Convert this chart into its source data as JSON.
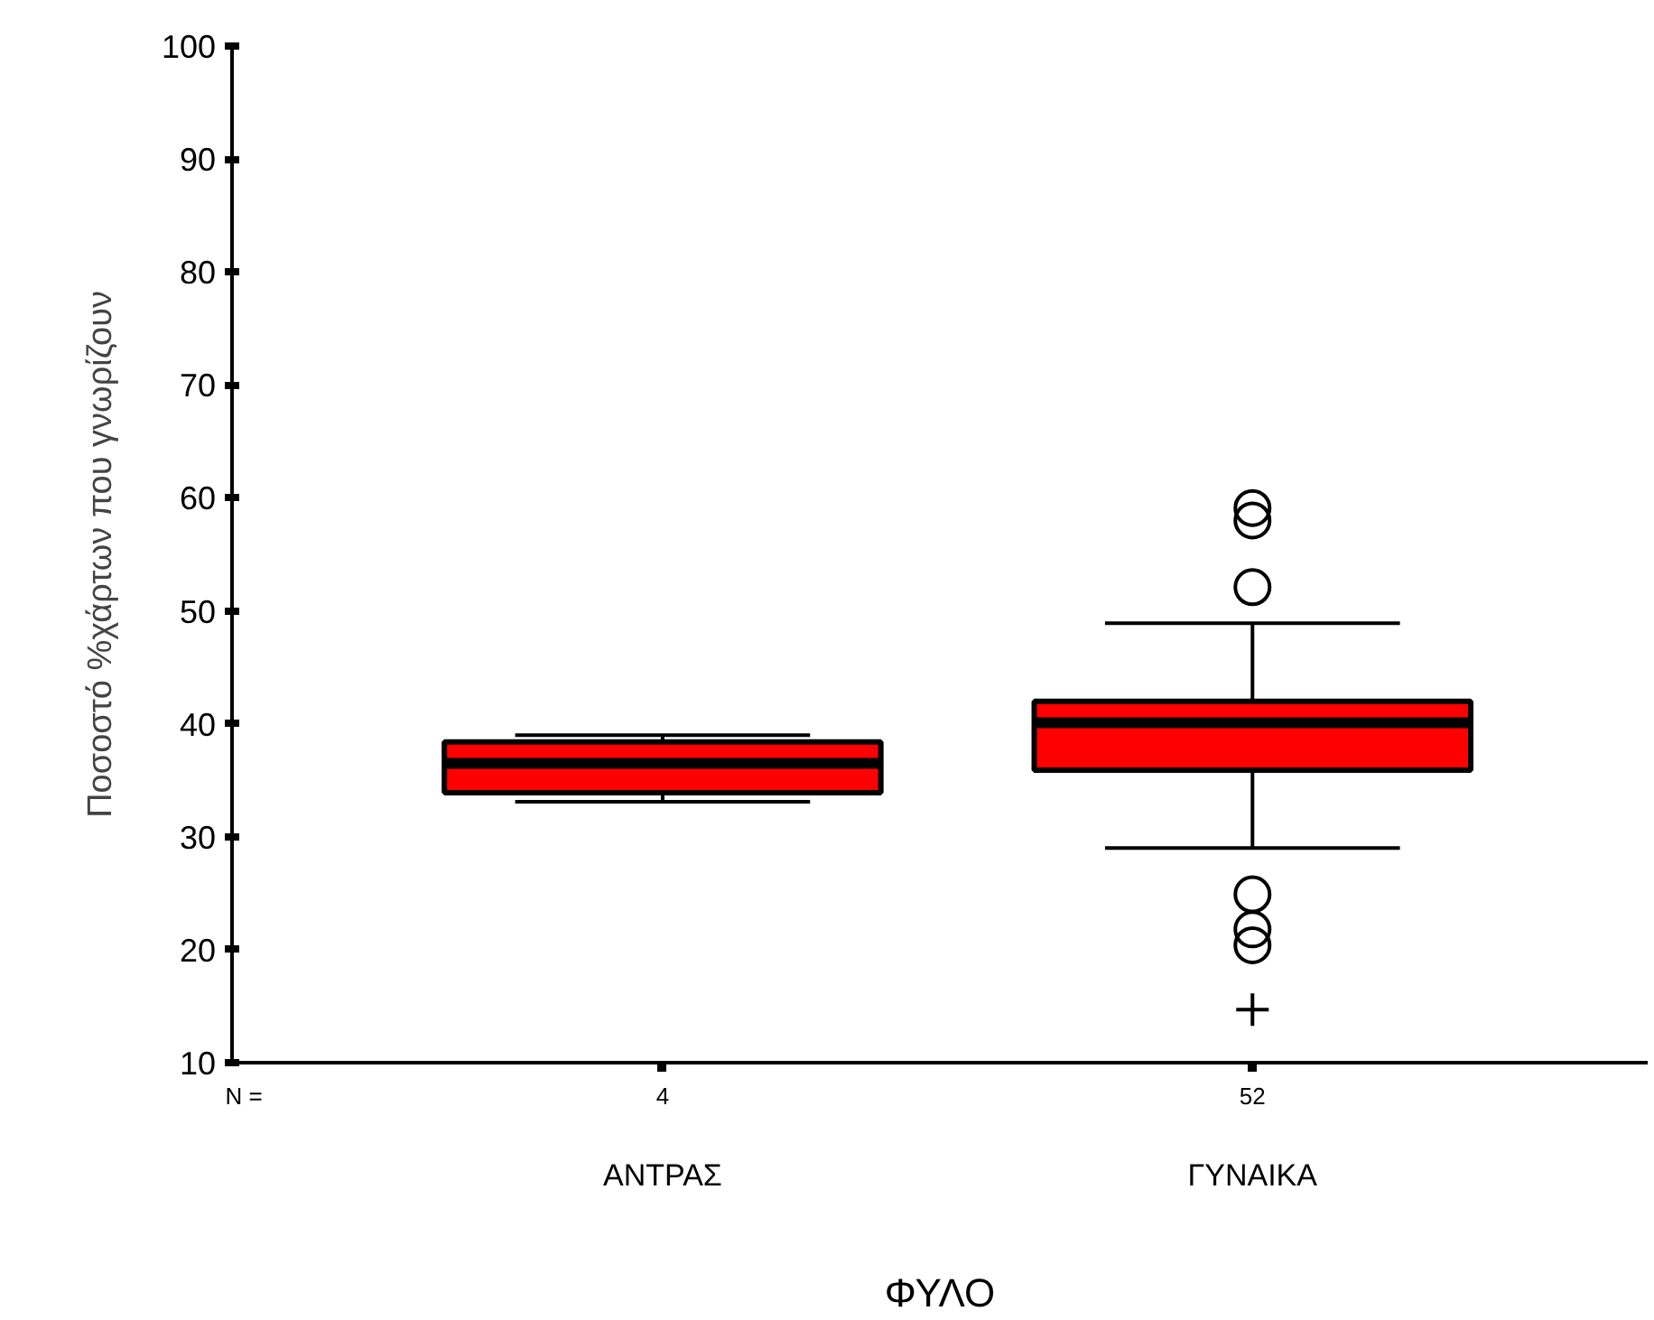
{
  "chart_data": {
    "type": "box",
    "categories": [
      "ΑΝΤΡΑΣ",
      "ΓΥΝΑΙΚΑ"
    ],
    "xlabel": "ΦΥΛΟ",
    "ylabel": "Ποσοστό %χάρτων που γνωρίζουν",
    "ylim": [
      10,
      100
    ],
    "yticks": [
      10,
      20,
      30,
      40,
      50,
      60,
      70,
      80,
      90,
      100
    ],
    "series": [
      {
        "color": "#ff0000",
        "boxes": [
          {
            "low": 33.1,
            "q1": 33.9,
            "median": 36.5,
            "q3": 38.4,
            "high": 39.0
          },
          {
            "low": 29,
            "q1": 35.9,
            "median": 40.1,
            "q3": 42.0,
            "high": 48.9,
            "outliers": [
              59.1,
              58.0,
              52.1,
              24.9,
              21.8,
              20.4
            ]
          }
        ]
      },
      {
        "type": "scatter",
        "x": [
          "ΓΥΝΑΙΚΑ"
        ],
        "values": [
          14.7
        ],
        "marker": "cross",
        "color": "#000000"
      }
    ],
    "annotations": [
      "N =",
      {
        "text": "4",
        "x": "ΑΝΤΡΑΣ"
      },
      {
        "text": "52",
        "x": "ΓΥΝΑΙΚΑ"
      }
    ],
    "grid": false
  }
}
